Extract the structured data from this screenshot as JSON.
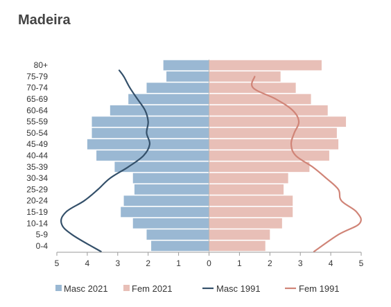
{
  "chart_data": {
    "type": "bar",
    "title": "Madeira",
    "categories": [
      "0-4",
      "5-9",
      "10-14",
      "15-19",
      "20-24",
      "25-29",
      "30-34",
      "35-39",
      "40-44",
      "45-49",
      "50-54",
      "55-59",
      "60-64",
      "65-69",
      "70-74",
      "75-79",
      "80+"
    ],
    "xlim": [
      -5,
      5
    ],
    "x_ticks": [
      -5,
      -4,
      -3,
      -2,
      -1,
      0,
      1,
      2,
      3,
      4,
      5
    ],
    "x_tick_labels": [
      "5",
      "4",
      "3",
      "2",
      "1",
      "0",
      "1",
      "2",
      "3",
      "4",
      "5"
    ],
    "series": [
      {
        "name": "Masc 2021",
        "kind": "bar",
        "side": "left",
        "color": "#9ab8d3",
        "values": [
          1.9,
          2.05,
          2.5,
          2.9,
          2.8,
          2.45,
          2.5,
          3.1,
          3.7,
          4.0,
          3.85,
          3.85,
          3.25,
          2.65,
          2.05,
          1.4,
          1.5
        ]
      },
      {
        "name": "Fem 2021",
        "kind": "bar",
        "side": "right",
        "color": "#e8bfb7",
        "values": [
          1.85,
          2.0,
          2.4,
          2.75,
          2.75,
          2.45,
          2.6,
          3.3,
          3.95,
          4.25,
          4.2,
          4.5,
          3.9,
          3.35,
          2.85,
          2.35,
          3.7
        ]
      },
      {
        "name": "Masc 1991",
        "kind": "line",
        "side": "left",
        "color": "#34506a",
        "values": [
          3.55,
          4.5,
          4.85,
          4.7,
          4.1,
          3.65,
          3.25,
          2.65,
          2.15,
          1.95,
          2.05,
          2.0,
          2.1,
          2.35,
          2.6,
          2.8,
          2.95
        ]
      },
      {
        "name": "Fem 1991",
        "kind": "line",
        "side": "right",
        "color": "#d08477",
        "values": [
          3.45,
          4.25,
          4.95,
          4.85,
          4.35,
          4.25,
          3.85,
          3.4,
          2.85,
          2.7,
          2.8,
          2.95,
          2.75,
          2.2,
          1.45,
          1.5,
          null
        ]
      }
    ],
    "legend_position": "bottom",
    "grid": false
  }
}
